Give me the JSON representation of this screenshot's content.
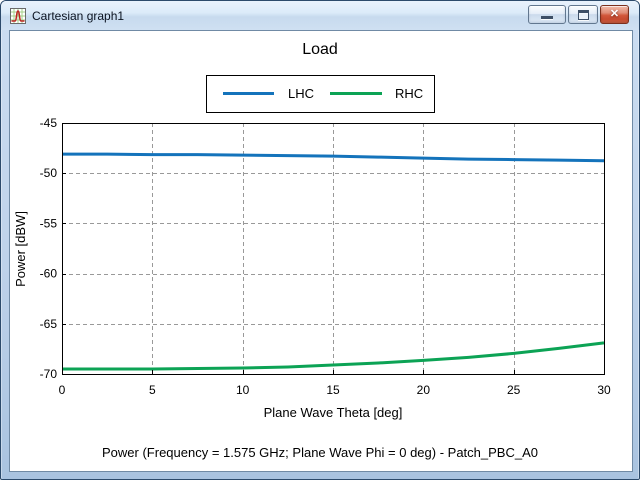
{
  "window": {
    "title": "Cartesian graph1",
    "controls": {
      "minimize": "minimize",
      "restore": "restore",
      "close": "close"
    }
  },
  "chart_data": {
    "type": "line",
    "title": "Load",
    "xlabel": "Plane Wave Theta [deg]",
    "ylabel": "Power [dBW]",
    "caption": "Power (Frequency = 1.575 GHz; Plane Wave Phi = 0 deg) - Patch_PBC_A0",
    "xlim": [
      0,
      30
    ],
    "ylim": [
      -70,
      -45
    ],
    "xticks": [
      0,
      5,
      10,
      15,
      20,
      25,
      30
    ],
    "yticks": [
      -45,
      -50,
      -55,
      -60,
      -65,
      -70
    ],
    "grid": "dashed",
    "grid_color": "#999999",
    "axis_color": "#000000",
    "legend_position": "top-center",
    "x": [
      0,
      2.5,
      5,
      7.5,
      10,
      12.5,
      15,
      17.5,
      20,
      22.5,
      25,
      27.5,
      30
    ],
    "series": [
      {
        "name": "LHC",
        "color": "#1473bb",
        "values": [
          -48.1,
          -48.1,
          -48.15,
          -48.15,
          -48.2,
          -48.25,
          -48.3,
          -48.4,
          -48.5,
          -48.6,
          -48.65,
          -48.7,
          -48.75
        ]
      },
      {
        "name": "RHC",
        "color": "#0ca355",
        "values": [
          -69.5,
          -69.5,
          -69.5,
          -69.45,
          -69.4,
          -69.3,
          -69.1,
          -68.9,
          -68.65,
          -68.35,
          -67.95,
          -67.45,
          -66.9
        ]
      }
    ]
  }
}
